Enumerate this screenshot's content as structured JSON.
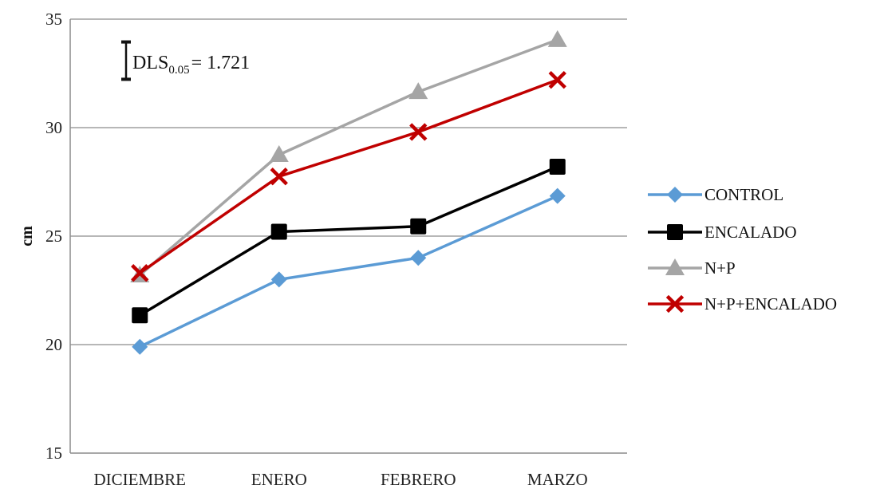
{
  "chart_data": {
    "type": "line",
    "categories": [
      "DICIEMBRE",
      "ENERO",
      "FEBRERO",
      "MARZO"
    ],
    "ylabel": "cm",
    "xlabel": "",
    "title": "",
    "ylim": [
      15,
      35
    ],
    "yticks": [
      "15",
      "20",
      "25",
      "30",
      "35"
    ],
    "grid": true,
    "legend_position": "right",
    "annotation": {
      "main": "DLS",
      "sub": "0.05",
      "value": "= 1.721",
      "interval_half_width": 0.8605
    },
    "series": [
      {
        "name": "CONTROL",
        "values": [
          19.9,
          23.0,
          24.0,
          26.85
        ],
        "color": "#5b9bd5",
        "marker": "diamond"
      },
      {
        "name": "ENCALADO",
        "values": [
          21.35,
          25.2,
          25.45,
          28.2
        ],
        "color": "#000000",
        "marker": "square"
      },
      {
        "name": "N+P",
        "values": [
          23.2,
          28.75,
          31.65,
          34.05
        ],
        "color": "#a5a5a5",
        "marker": "triangle"
      },
      {
        "name": "N+P+ENCALADO",
        "values": [
          23.3,
          27.75,
          29.8,
          32.2
        ],
        "color": "#c00000",
        "marker": "x"
      }
    ]
  }
}
